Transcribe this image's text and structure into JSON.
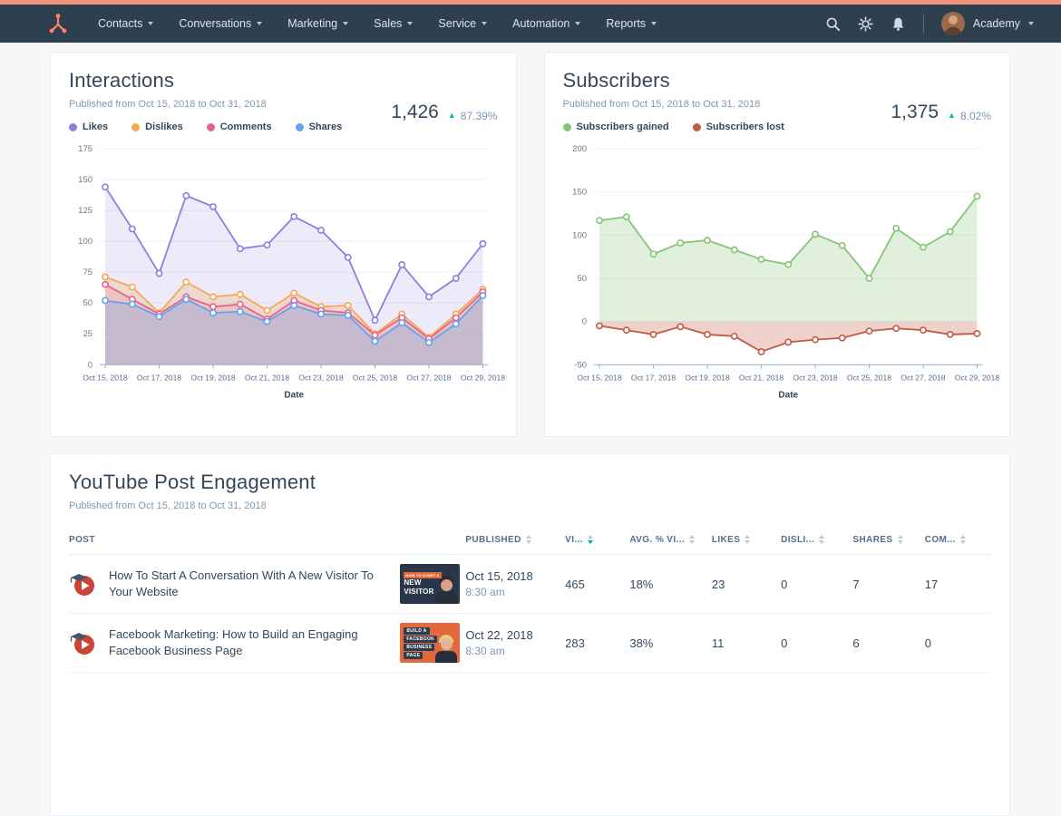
{
  "theme": {
    "topstrip": "#f0937b",
    "navbar": "#2e3f50",
    "positive": "#00bda5",
    "sort_active": "#00a4bd",
    "ink": "#33475b",
    "muted": "#7c98b6"
  },
  "nav": {
    "menu_items": [
      "Contacts",
      "Conversations",
      "Marketing",
      "Sales",
      "Service",
      "Automation",
      "Reports"
    ],
    "account_label": "Academy"
  },
  "interactions": {
    "title": "Interactions",
    "subtitle": "Published from Oct 15, 2018 to Oct 31, 2018",
    "total": "1,426",
    "change": "87.39%"
  },
  "subscribers": {
    "title": "Subscribers",
    "subtitle": "Published from Oct 15, 2018 to Oct 31, 2018",
    "total": "1,375",
    "change": "8.02%"
  },
  "chart_data": [
    {
      "type": "line",
      "title": "Interactions",
      "xlabel": "Date",
      "ylim": [
        0,
        175
      ],
      "yticks": [
        0,
        25,
        50,
        75,
        100,
        125,
        150,
        175
      ],
      "x_tick_step": 2,
      "grid": true,
      "legend_position": "top-left",
      "x": [
        "Oct 15, 2018",
        "Oct 16, 2018",
        "Oct 17, 2018",
        "Oct 18, 2018",
        "Oct 19, 2018",
        "Oct 20, 2018",
        "Oct 21, 2018",
        "Oct 22, 2018",
        "Oct 23, 2018",
        "Oct 24, 2018",
        "Oct 25, 2018",
        "Oct 26, 2018",
        "Oct 27, 2018",
        "Oct 28, 2018",
        "Oct 29, 2018"
      ],
      "series": [
        {
          "name": "Likes",
          "color": "#8d7fe0",
          "fill": "rgba(141,127,224,0.16)",
          "values": [
            144,
            110,
            74,
            137,
            128,
            94,
            97,
            120,
            109,
            87,
            36,
            81,
            55,
            70,
            98
          ]
        },
        {
          "name": "Dislikes",
          "color": "#f5a855",
          "fill": "rgba(245,168,85,0.25)",
          "values": [
            71,
            63,
            42,
            67,
            55,
            57,
            44,
            58,
            47,
            48,
            25,
            41,
            22,
            41,
            61
          ]
        },
        {
          "name": "Comments",
          "color": "#e8638c",
          "fill": "rgba(232,99,140,0.18)",
          "values": [
            65,
            53,
            41,
            55,
            47,
            49,
            37,
            52,
            44,
            42,
            24,
            38,
            21,
            38,
            59
          ]
        },
        {
          "name": "Shares",
          "color": "#61a3ef",
          "fill": "rgba(97,163,239,0.28)",
          "values": [
            52,
            49,
            39,
            53,
            42,
            43,
            35,
            48,
            41,
            40,
            19,
            34,
            18,
            33,
            56
          ]
        }
      ]
    },
    {
      "type": "line",
      "title": "Subscribers",
      "xlabel": "Date",
      "ylim": [
        -50,
        200
      ],
      "yticks": [
        -50,
        0,
        50,
        100,
        150,
        200
      ],
      "x_tick_step": 2,
      "grid": true,
      "legend_position": "top-left",
      "x": [
        "Oct 15, 2018",
        "Oct 16, 2018",
        "Oct 17, 2018",
        "Oct 18, 2018",
        "Oct 19, 2018",
        "Oct 20, 2018",
        "Oct 21, 2018",
        "Oct 22, 2018",
        "Oct 23, 2018",
        "Oct 24, 2018",
        "Oct 25, 2018",
        "Oct 26, 2018",
        "Oct 27, 2018",
        "Oct 28, 2018",
        "Oct 29, 2018"
      ],
      "series": [
        {
          "name": "Subscribers gained",
          "color": "#86c476",
          "fill": "rgba(134,196,118,0.25)",
          "values": [
            117,
            121,
            78,
            91,
            94,
            83,
            72,
            66,
            101,
            88,
            50,
            108,
            86,
            104,
            145
          ]
        },
        {
          "name": "Subscribers lost",
          "color": "#c25a43",
          "fill": "rgba(194,90,67,0.28)",
          "values": [
            -5,
            -10,
            -15,
            -6,
            -15,
            -17,
            -35,
            -24,
            -21,
            -19,
            -11,
            -8,
            -10,
            -15,
            -14
          ]
        }
      ]
    }
  ],
  "table": {
    "title": "YouTube Post Engagement",
    "subtitle": "Published from Oct 15, 2018 to Oct 31, 2018",
    "columns": [
      {
        "label": "POST",
        "sortable": false
      },
      {
        "label": "PUBLISHED",
        "sortable": true
      },
      {
        "label": "VI...",
        "sortable": true,
        "active_sort": "desc"
      },
      {
        "label": "AVG. % VI...",
        "sortable": true
      },
      {
        "label": "LIKES",
        "sortable": true
      },
      {
        "label": "DISLI...",
        "sortable": true
      },
      {
        "label": "SHARES",
        "sortable": true
      },
      {
        "label": "COM...",
        "sortable": true
      }
    ],
    "rows": [
      {
        "title": "How To Start A Conversation With A New Visitor To Your Website",
        "published_date": "Oct 15, 2018",
        "published_time": "8:30 am",
        "views": "465",
        "avg_viewed": "18%",
        "likes": "23",
        "dislikes": "0",
        "shares": "7",
        "comments": "17",
        "thumb": {
          "bg": "#28374a",
          "badge": "#e4683c",
          "lines": [
            {
              "text": "HOW TO START A",
              "style": "accent"
            },
            {
              "text": "NEW",
              "style": "big"
            },
            {
              "text": "VISITOR",
              "style": "big"
            }
          ],
          "skin": "#d9a18c",
          "hair": "#2e2a28"
        }
      },
      {
        "title": "Facebook Marketing: How to Build an Engaging Facebook Business Page",
        "published_date": "Oct 22, 2018",
        "published_time": "8:30 am",
        "views": "283",
        "avg_viewed": "38%",
        "likes": "11",
        "dislikes": "0",
        "shares": "6",
        "comments": "0",
        "thumb": {
          "bg": "#e4683c",
          "badge": "#2d3c4e",
          "lines": [
            {
              "text": "BUILD A",
              "style": "badge"
            },
            {
              "text": "FACEBOOK",
              "style": "badge"
            },
            {
              "text": "BUSINESS",
              "style": "badge"
            },
            {
              "text": "PAGE",
              "style": "badge"
            }
          ],
          "skin": "#e3b49c",
          "hair": "#e9cb7e"
        }
      }
    ]
  }
}
